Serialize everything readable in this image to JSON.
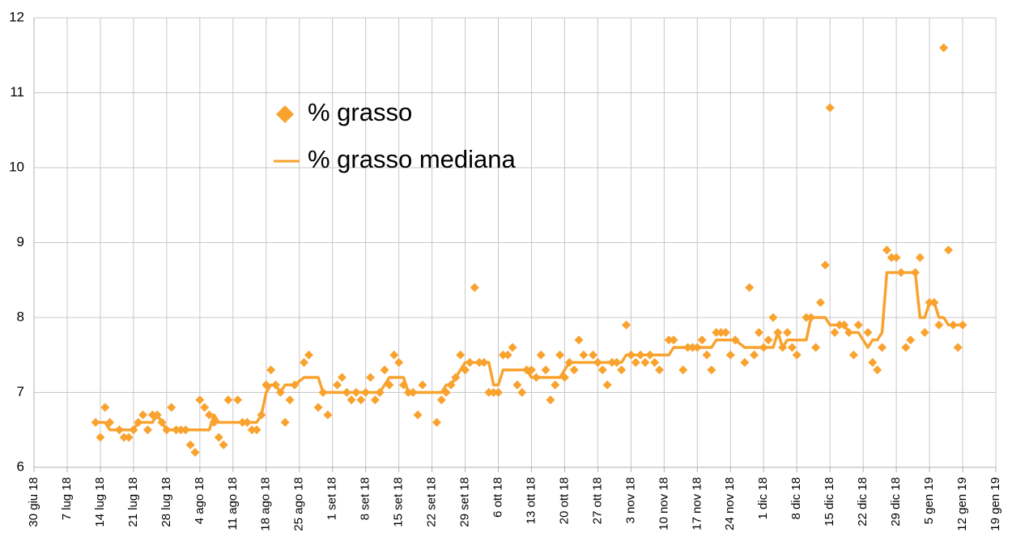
{
  "chart_data": {
    "type": "line",
    "x": [
      "13 lug 18",
      "14 lug 18",
      "15 lug 18",
      "16 lug 18",
      "18 lug 18",
      "19 lug 18",
      "20 lug 18",
      "21 lug 18",
      "22 lug 18",
      "23 lug 18",
      "24 lug 18",
      "25 lug 18",
      "26 lug 18",
      "27 lug 18",
      "28 lug 18",
      "29 lug 18",
      "30 lug 18",
      "31 lug 18",
      "1 ago 18",
      "2 ago 18",
      "3 ago 18",
      "4 ago 18",
      "5 ago 18",
      "6 ago 18",
      "7 ago 18",
      "8 ago 18",
      "9 ago 18",
      "10 ago 18",
      "12 ago 18",
      "13 ago 18",
      "14 ago 18",
      "15 ago 18",
      "16 ago 18",
      "17 ago 18",
      "18 ago 18",
      "19 ago 18",
      "20 ago 18",
      "21 ago 18",
      "22 ago 18",
      "23 ago 18",
      "24 ago 18",
      "26 ago 18",
      "27 ago 18",
      "29 ago 18",
      "30 ago 18",
      "31 ago 18",
      "2 set 18",
      "3 set 18",
      "4 set 18",
      "5 set 18",
      "6 set 18",
      "7 set 18",
      "8 set 18",
      "9 set 18",
      "10 set 18",
      "11 set 18",
      "12 set 18",
      "13 set 18",
      "14 set 18",
      "15 set 18",
      "16 set 18",
      "17 set 18",
      "18 set 18",
      "19 set 18",
      "20 set 18",
      "23 set 18",
      "24 set 18",
      "25 set 18",
      "26 set 18",
      "27 set 18",
      "28 set 18",
      "29 set 18",
      "30 set 18",
      "1 ott 18",
      "2 ott 18",
      "3 ott 18",
      "4 ott 18",
      "5 ott 18",
      "6 ott 18",
      "7 ott 18",
      "8 ott 18",
      "9 ott 18",
      "10 ott 18",
      "11 ott 18",
      "12 ott 18",
      "13 ott 18",
      "14 ott 18",
      "15 ott 18",
      "16 ott 18",
      "17 ott 18",
      "18 ott 18",
      "19 ott 18",
      "20 ott 18",
      "21 ott 18",
      "22 ott 18",
      "23 ott 18",
      "24 ott 18",
      "26 ott 18",
      "27 ott 18",
      "28 ott 18",
      "29 ott 18",
      "30 ott 18",
      "31 ott 18",
      "1 nov 18",
      "2 nov 18",
      "3 nov 18",
      "4 nov 18",
      "5 nov 18",
      "6 nov 18",
      "7 nov 18",
      "8 nov 18",
      "9 nov 18",
      "11 nov 18",
      "12 nov 18",
      "14 nov 18",
      "15 nov 18",
      "16 nov 18",
      "17 nov 18",
      "18 nov 18",
      "19 nov 18",
      "20 nov 18",
      "21 nov 18",
      "22 nov 18",
      "23 nov 18",
      "24 nov 18",
      "25 nov 18",
      "27 nov 18",
      "28 nov 18",
      "29 nov 18",
      "30 nov 18",
      "1 dic 18",
      "2 dic 18",
      "3 dic 18",
      "4 dic 18",
      "5 dic 18",
      "6 dic 18",
      "7 dic 18",
      "8 dic 18",
      "10 dic 18",
      "11 dic 18",
      "12 dic 18",
      "13 dic 18",
      "14 dic 18",
      "15 dic 18",
      "16 dic 18",
      "17 dic 18",
      "18 dic 18",
      "19 dic 18",
      "20 dic 18",
      "21 dic 18",
      "23 dic 18",
      "24 dic 18",
      "25 dic 18",
      "26 dic 18",
      "27 dic 18",
      "28 dic 18",
      "29 dic 18",
      "30 dic 18",
      "31 dic 18",
      "1 gen 19",
      "2 gen 19",
      "3 gen 19",
      "4 gen 19",
      "5 gen 19",
      "6 gen 19",
      "7 gen 19",
      "8 gen 19",
      "9 gen 19",
      "10 gen 19",
      "11 gen 19",
      "12 gen 19"
    ],
    "series": [
      {
        "name": "% grasso",
        "type": "scatter",
        "color": "#f9a22e",
        "values": [
          6.6,
          6.4,
          6.8,
          6.6,
          6.5,
          6.4,
          6.4,
          6.5,
          6.6,
          6.7,
          6.5,
          6.7,
          6.7,
          6.6,
          6.5,
          6.8,
          6.5,
          6.5,
          6.5,
          6.3,
          6.2,
          6.9,
          6.8,
          6.7,
          6.6,
          6.4,
          6.3,
          6.9,
          6.9,
          6.6,
          6.6,
          6.5,
          6.5,
          6.7,
          7.1,
          7.3,
          7.1,
          7.0,
          6.6,
          6.9,
          7.1,
          7.4,
          7.5,
          6.8,
          7.0,
          6.7,
          7.1,
          7.2,
          7.0,
          6.9,
          7.0,
          6.9,
          7.0,
          7.2,
          6.9,
          7.0,
          7.3,
          7.1,
          7.5,
          7.4,
          7.1,
          7.0,
          7.0,
          6.7,
          7.1,
          6.6,
          6.9,
          7.0,
          7.1,
          7.2,
          7.5,
          7.3,
          7.4,
          8.4,
          7.4,
          7.4,
          7.0,
          7.0,
          7.0,
          7.5,
          7.5,
          7.6,
          7.1,
          7.0,
          7.3,
          7.3,
          7.2,
          7.5,
          7.3,
          6.9,
          7.1,
          7.5,
          7.2,
          7.4,
          7.3,
          7.7,
          7.5,
          7.5,
          7.4,
          7.3,
          7.1,
          7.4,
          7.4,
          7.3,
          7.9,
          7.5,
          7.4,
          7.5,
          7.4,
          7.5,
          7.4,
          7.3,
          7.7,
          7.7,
          7.3,
          7.6,
          7.6,
          7.6,
          7.7,
          7.5,
          7.3,
          7.8,
          7.8,
          7.8,
          7.5,
          7.7,
          7.4,
          8.4,
          7.5,
          7.8,
          7.6,
          7.7,
          8.0,
          7.8,
          7.6,
          7.8,
          7.6,
          7.5,
          8.0,
          8.0,
          7.6,
          8.2,
          8.7,
          10.8,
          7.8,
          7.9,
          7.9,
          7.8,
          7.5,
          7.9,
          7.8,
          7.4,
          7.3,
          7.6,
          8.9,
          8.8,
          8.8,
          8.6,
          7.6,
          7.7,
          8.6,
          8.8,
          7.8,
          8.2,
          8.2,
          7.9,
          11.6,
          8.9,
          7.9,
          7.6,
          7.9
        ]
      },
      {
        "name": "% grasso mediana",
        "type": "line",
        "color": "#f9a22e",
        "values": [
          6.6,
          6.6,
          6.6,
          6.5,
          6.5,
          6.5,
          6.5,
          6.5,
          6.6,
          6.6,
          6.6,
          6.6,
          6.7,
          6.6,
          6.5,
          6.5,
          6.5,
          6.5,
          6.5,
          6.5,
          6.5,
          6.5,
          6.5,
          6.5,
          6.7,
          6.6,
          6.6,
          6.6,
          6.6,
          6.6,
          6.6,
          6.6,
          6.6,
          6.7,
          7.0,
          7.1,
          7.1,
          7.0,
          7.1,
          7.1,
          7.1,
          7.2,
          7.2,
          7.2,
          7.0,
          7.0,
          7.0,
          7.0,
          7.0,
          7.0,
          7.0,
          7.0,
          7.0,
          7.0,
          7.0,
          7.0,
          7.1,
          7.2,
          7.2,
          7.2,
          7.2,
          7.0,
          7.0,
          7.0,
          7.0,
          7.0,
          7.0,
          7.1,
          7.1,
          7.2,
          7.3,
          7.4,
          7.4,
          7.4,
          7.4,
          7.4,
          7.4,
          7.1,
          7.1,
          7.3,
          7.3,
          7.3,
          7.3,
          7.3,
          7.3,
          7.2,
          7.2,
          7.2,
          7.2,
          7.2,
          7.2,
          7.2,
          7.3,
          7.4,
          7.4,
          7.4,
          7.4,
          7.4,
          7.4,
          7.4,
          7.4,
          7.4,
          7.4,
          7.4,
          7.5,
          7.5,
          7.5,
          7.5,
          7.5,
          7.5,
          7.5,
          7.5,
          7.5,
          7.6,
          7.6,
          7.6,
          7.6,
          7.6,
          7.6,
          7.6,
          7.6,
          7.7,
          7.7,
          7.7,
          7.7,
          7.7,
          7.6,
          7.6,
          7.6,
          7.6,
          7.6,
          7.6,
          7.6,
          7.8,
          7.6,
          7.7,
          7.7,
          7.7,
          7.7,
          8.0,
          8.0,
          8.0,
          8.0,
          7.9,
          7.9,
          7.9,
          7.9,
          7.8,
          7.8,
          7.8,
          7.6,
          7.7,
          7.7,
          7.8,
          8.6,
          8.6,
          8.6,
          8.6,
          8.6,
          8.6,
          8.6,
          8.0,
          8.0,
          8.2,
          8.2,
          8.0,
          8.0,
          7.9,
          7.9,
          7.9,
          7.9
        ]
      }
    ],
    "xlim": [
      "30 giu 18",
      "19 gen 19"
    ],
    "xticks": [
      "30 giu 18",
      "7 lug 18",
      "14 lug 18",
      "21 lug 18",
      "28 lug 18",
      "4 ago 18",
      "11 ago 18",
      "18 ago 18",
      "25 ago 18",
      "1 set 18",
      "8 set 18",
      "15 set 18",
      "22 set 18",
      "29 set 18",
      "6 ott 18",
      "13 ott 18",
      "20 ott 18",
      "27 ott 18",
      "3 nov 18",
      "10 nov 18",
      "17 nov 18",
      "24 nov 18",
      "1 dic 18",
      "8 dic 18",
      "15 dic 18",
      "22 dic 18",
      "29 dic 18",
      "5 gen 19",
      "12 gen 19",
      "19 gen 19"
    ],
    "ylim": [
      6,
      12
    ],
    "yticks": [
      6,
      7,
      8,
      9,
      10,
      11,
      12
    ],
    "grid": true,
    "legend": "upper center"
  }
}
